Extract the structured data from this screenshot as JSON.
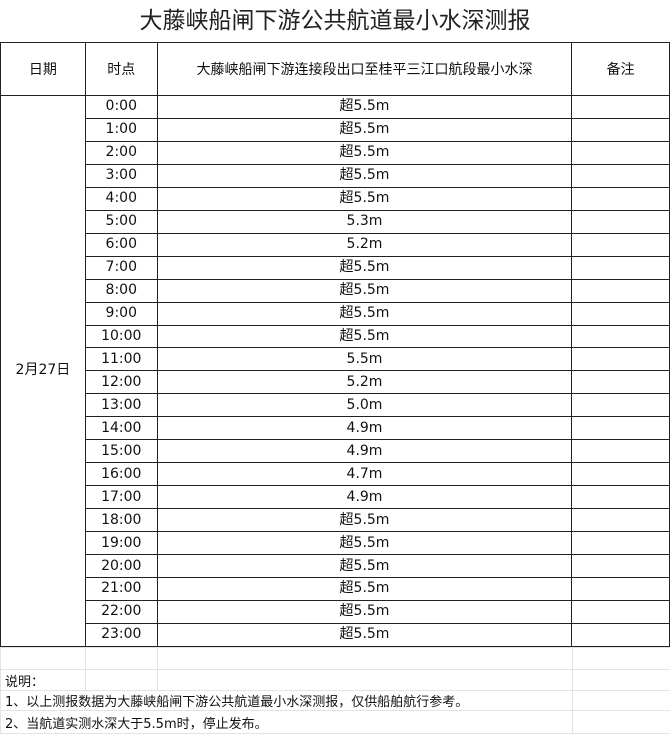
{
  "title": "大藤峡船闸下游公共航道最小水深测报",
  "headers": {
    "date": "日期",
    "time": "时点",
    "depth": "大藤峡船闸下游连接段出口至桂平三江口航段最小水深",
    "remark": "备注"
  },
  "date": "2月27日",
  "rows": [
    {
      "time": "0:00",
      "depth": "超5.5m"
    },
    {
      "time": "1:00",
      "depth": "超5.5m"
    },
    {
      "time": "2:00",
      "depth": "超5.5m"
    },
    {
      "time": "3:00",
      "depth": "超5.5m"
    },
    {
      "time": "4:00",
      "depth": "超5.5m"
    },
    {
      "time": "5:00",
      "depth": "5.3m"
    },
    {
      "time": "6:00",
      "depth": "5.2m"
    },
    {
      "time": "7:00",
      "depth": "超5.5m"
    },
    {
      "time": "8:00",
      "depth": "超5.5m"
    },
    {
      "time": "9:00",
      "depth": "超5.5m"
    },
    {
      "time": "10:00",
      "depth": "超5.5m"
    },
    {
      "time": "11:00",
      "depth": "5.5m"
    },
    {
      "time": "12:00",
      "depth": "5.2m"
    },
    {
      "time": "13:00",
      "depth": "5.0m"
    },
    {
      "time": "14:00",
      "depth": "4.9m"
    },
    {
      "time": "15:00",
      "depth": "4.9m"
    },
    {
      "time": "16:00",
      "depth": "4.7m"
    },
    {
      "time": "17:00",
      "depth": "4.9m"
    },
    {
      "time": "18:00",
      "depth": "超5.5m"
    },
    {
      "time": "19:00",
      "depth": "超5.5m"
    },
    {
      "time": "20:00",
      "depth": "超5.5m"
    },
    {
      "time": "21:00",
      "depth": "超5.5m"
    },
    {
      "time": "22:00",
      "depth": "超5.5m"
    },
    {
      "time": "23:00",
      "depth": "超5.5m"
    }
  ],
  "notes": {
    "heading": "说明：",
    "items": [
      "1、以上测报数据为大藤峡船闸下游公共航道最小水深测报，仅供船舶航行参考。",
      "2、当航道实测水深大于5.5m时，停止发布。"
    ]
  }
}
